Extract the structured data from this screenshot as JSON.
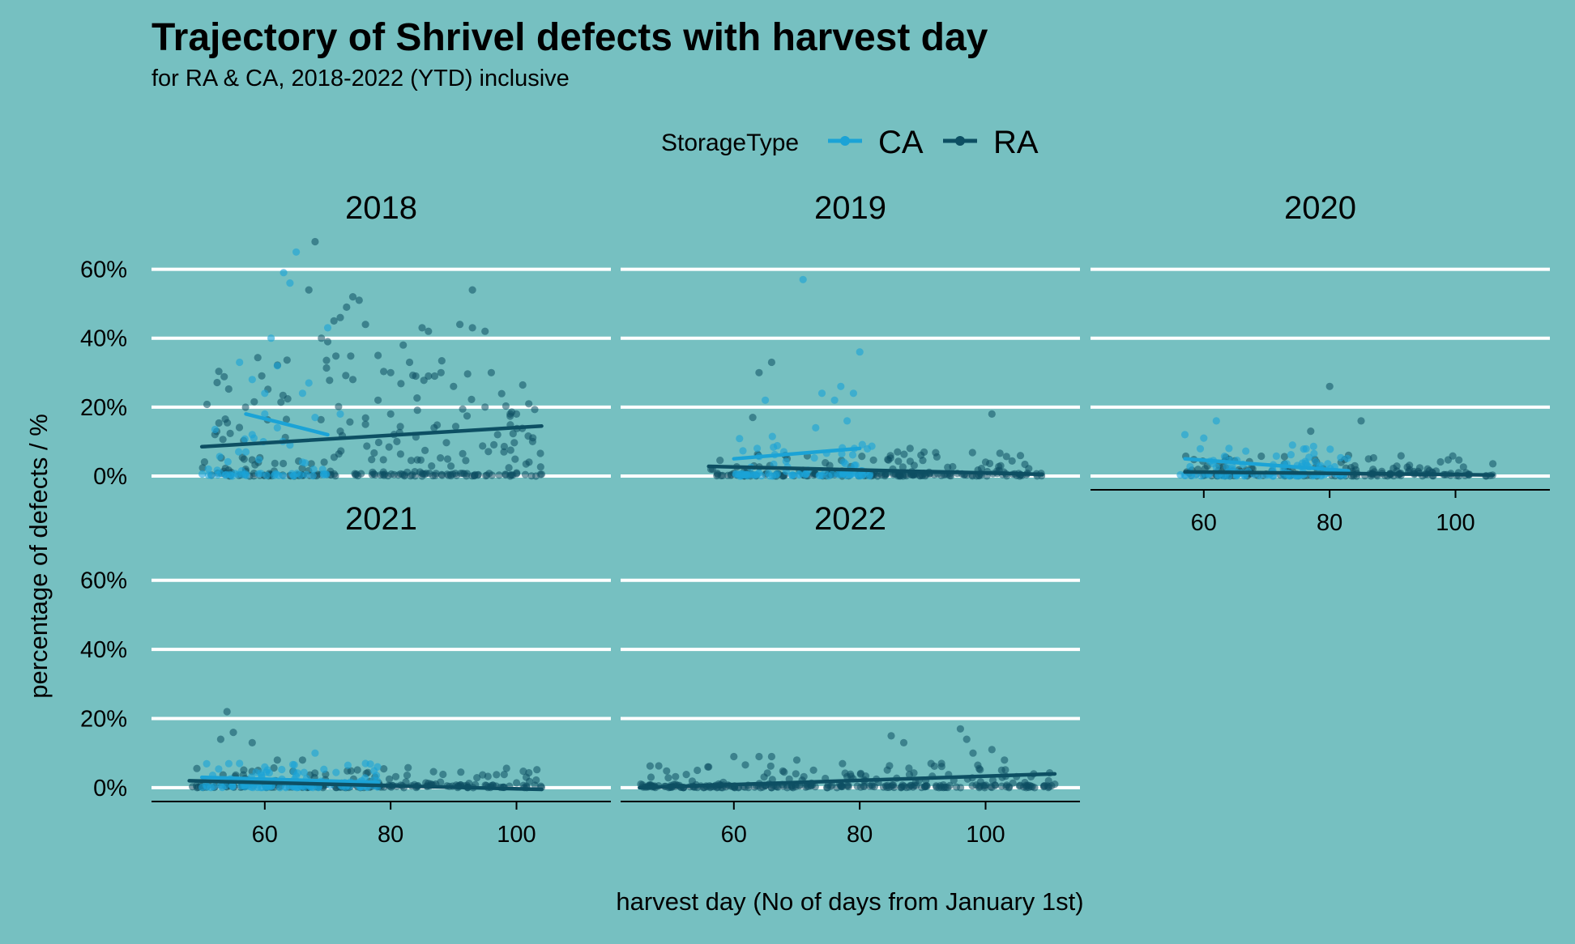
{
  "chart_data": {
    "type": "scatter",
    "title": "Trajectory of Shrivel defects with harvest day",
    "subtitle": "for RA & CA, 2018-2022 (YTD) inclusive",
    "xlabel": "harvest day (No of days from January 1st)",
    "ylabel": "percentage of defects / %",
    "xlim": [
      42,
      115
    ],
    "ylim": [
      -4,
      70
    ],
    "x_ticks": [
      60,
      80,
      100
    ],
    "x_tick_labels": [
      "60",
      "80",
      "100"
    ],
    "y_ticks": [
      0,
      20,
      40,
      60
    ],
    "y_tick_labels": [
      "0%",
      "20%",
      "40%",
      "60%"
    ],
    "grid": "horizontal major",
    "legend": {
      "title": "StorageType",
      "position": "top",
      "entries": [
        {
          "label": "CA",
          "color": "#1ba3d6"
        },
        {
          "label": "RA",
          "color": "#0d4f63"
        }
      ]
    },
    "colors": {
      "background": "#76c0c1",
      "CA": "#1ba3d6",
      "RA": "#0d4f63",
      "grid": "#ffffff"
    },
    "panels": [
      {
        "label": "2018",
        "trend": {
          "CA": [
            [
              57,
              18
            ],
            [
              70,
              12
            ]
          ],
          "RA": [
            [
              50,
              8.5
            ],
            [
              104,
              14.5
            ]
          ]
        },
        "highlight_points": {
          "CA": [
            [
              56,
              33
            ],
            [
              58,
              28
            ],
            [
              60,
              24
            ],
            [
              61,
              40
            ],
            [
              62,
              32
            ],
            [
              63,
              59
            ],
            [
              64,
              56
            ],
            [
              65,
              65
            ],
            [
              66,
              24
            ],
            [
              67,
              27
            ],
            [
              60,
              18
            ],
            [
              62,
              14
            ],
            [
              64,
              9
            ],
            [
              66,
              4
            ],
            [
              68,
              17
            ],
            [
              70,
              43
            ],
            [
              72,
              18
            ],
            [
              58,
              12
            ],
            [
              57,
              7
            ]
          ],
          "RA": [
            [
              68,
              68
            ],
            [
              67,
              54
            ],
            [
              69,
              40
            ],
            [
              71,
              45
            ],
            [
              73,
              49
            ],
            [
              74,
              52
            ],
            [
              75,
              51
            ],
            [
              72,
              46
            ],
            [
              70,
              39
            ],
            [
              76,
              44
            ],
            [
              78,
              35
            ],
            [
              80,
              30
            ],
            [
              82,
              38
            ],
            [
              83,
              33
            ],
            [
              84,
              29
            ],
            [
              86,
              29
            ],
            [
              87,
              29
            ],
            [
              88,
              30
            ],
            [
              90,
              26
            ],
            [
              91,
              44
            ],
            [
              93,
              54
            ],
            [
              93,
              43
            ],
            [
              95,
              42
            ],
            [
              96,
              30
            ],
            [
              95,
              20
            ],
            [
              97,
              12
            ],
            [
              98,
              7
            ],
            [
              99,
              18
            ],
            [
              100,
              18
            ],
            [
              102,
              4
            ],
            [
              99,
              0
            ],
            [
              85,
              43
            ],
            [
              86,
              42
            ],
            [
              78,
              22
            ],
            [
              80,
              18
            ],
            [
              74,
              28
            ],
            [
              76,
              15
            ],
            [
              72,
              13
            ],
            [
              81,
              10
            ]
          ]
        },
        "cluster_params": {
          "CA": {
            "range": [
              50,
              70
            ],
            "count": 50,
            "max": 16,
            "zero_frac": 0.55
          },
          "RA": {
            "range": [
              50,
              104
            ],
            "count": 240,
            "max": 35,
            "zero_frac": 0.3
          }
        }
      },
      {
        "label": "2019",
        "trend": {
          "CA": [
            [
              60,
              5
            ],
            [
              80,
              8
            ]
          ],
          "RA": [
            [
              56,
              2.8
            ],
            [
              109,
              0.5
            ]
          ]
        },
        "highlight_points": {
          "CA": [
            [
              71,
              57
            ],
            [
              80,
              36
            ],
            [
              77,
              26
            ],
            [
              74,
              24
            ],
            [
              76,
              22
            ],
            [
              79,
              24
            ],
            [
              65,
              22
            ],
            [
              78,
              16
            ],
            [
              73,
              14
            ]
          ],
          "RA": [
            [
              64,
              30
            ],
            [
              66,
              33
            ],
            [
              63,
              17
            ],
            [
              101,
              18
            ],
            [
              100,
              4
            ],
            [
              88,
              8
            ],
            [
              86,
              7
            ]
          ]
        },
        "cluster_params": {
          "CA": {
            "range": [
              60,
              82
            ],
            "count": 90,
            "max": 13,
            "zero_frac": 0.35
          },
          "RA": {
            "range": [
              56,
              109
            ],
            "count": 210,
            "max": 7,
            "zero_frac": 0.5
          }
        }
      },
      {
        "label": "2020",
        "trend": {
          "CA": [
            [
              57,
              5
            ],
            [
              83,
              1.5
            ]
          ],
          "RA": [
            [
              57,
              1.2
            ],
            [
              106,
              0.3
            ]
          ]
        },
        "highlight_points": {
          "CA": [
            [
              62,
              16
            ],
            [
              57,
              12
            ],
            [
              60,
              11
            ],
            [
              64,
              8
            ]
          ],
          "RA": [
            [
              80,
              26
            ],
            [
              85,
              16
            ],
            [
              77,
              13
            ],
            [
              83,
              6
            ]
          ]
        },
        "cluster_params": {
          "CA": {
            "range": [
              56,
              83
            ],
            "count": 110,
            "max": 9,
            "zero_frac": 0.3
          },
          "RA": {
            "range": [
              57,
              106
            ],
            "count": 180,
            "max": 6,
            "zero_frac": 0.45
          }
        }
      },
      {
        "label": "2021",
        "trend": {
          "CA": [
            [
              50,
              3
            ],
            [
              78,
              1.5
            ]
          ],
          "RA": [
            [
              48,
              2
            ],
            [
              104,
              -0.5
            ]
          ]
        },
        "highlight_points": {
          "CA": [
            [
              68,
              10
            ],
            [
              56,
              7
            ],
            [
              60,
              6
            ],
            [
              76,
              7
            ]
          ],
          "RA": [
            [
              54,
              22
            ],
            [
              53,
              14
            ],
            [
              55,
              16
            ],
            [
              58,
              13
            ],
            [
              62,
              8
            ],
            [
              66,
              8
            ]
          ]
        },
        "cluster_params": {
          "CA": {
            "range": [
              50,
              78
            ],
            "count": 110,
            "max": 7,
            "zero_frac": 0.3
          },
          "RA": {
            "range": [
              48,
              104
            ],
            "count": 200,
            "max": 6,
            "zero_frac": 0.45
          }
        }
      },
      {
        "label": "2022",
        "trend": {
          "CA": null,
          "RA": [
            [
              45,
              0
            ],
            [
              111,
              4
            ]
          ]
        },
        "highlight_points": {
          "CA": [],
          "RA": [
            [
              85,
              15
            ],
            [
              87,
              13
            ],
            [
              96,
              17
            ],
            [
              98,
              10
            ],
            [
              97,
              14
            ],
            [
              101,
              11
            ],
            [
              103,
              8
            ],
            [
              93,
              7
            ],
            [
              64,
              9
            ],
            [
              66,
              9
            ],
            [
              70,
              8
            ],
            [
              60,
              9
            ],
            [
              56,
              6
            ],
            [
              110,
              2
            ],
            [
              111,
              1
            ]
          ]
        },
        "cluster_params": {
          "CA": null,
          "RA": {
            "range": [
              45,
              111
            ],
            "count": 280,
            "max": 7,
            "zero_frac": 0.45
          }
        }
      }
    ]
  }
}
